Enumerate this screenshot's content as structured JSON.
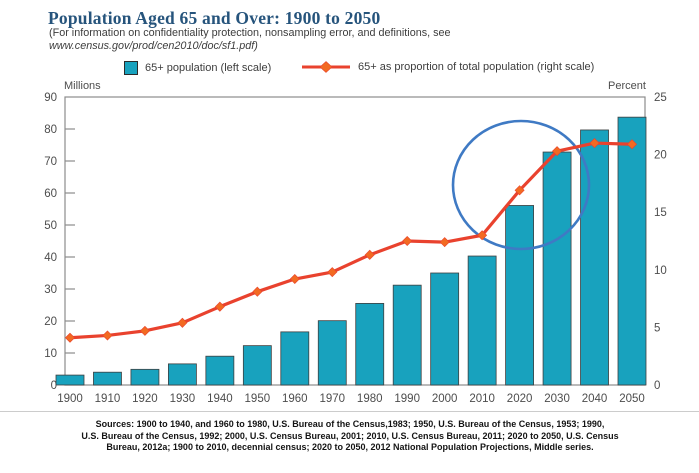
{
  "header": {
    "title": "Population Aged 65 and Over: 1900 to 2050",
    "subtitle_line1": "(For information on confidentiality protection, nonsampling error, and definitions, see",
    "subtitle_line2": "www.census.gov/prod/cen2010/doc/sf1.pdf)"
  },
  "legend": {
    "bar_label": "65+ population (left scale)",
    "line_label": "65+ as proportion of total population (right scale)"
  },
  "colors": {
    "title_text": "#26547C",
    "bar_fill": "#18A2BE",
    "bar_border": "#3f3f3f",
    "line": "#E9422E",
    "marker": "#F26A22",
    "annotation_circle": "#3F7AC4",
    "axis": "#8c8c8c",
    "tick_text": "#4d4d4d"
  },
  "chart_data": {
    "type": "bar",
    "title": "Population Aged 65 and Over: 1900 to 2050",
    "categories": [
      "1900",
      "1910",
      "1920",
      "1930",
      "1940",
      "1950",
      "1960",
      "1970",
      "1980",
      "1990",
      "2000",
      "2010",
      "2020",
      "2030",
      "2040",
      "2050"
    ],
    "series": [
      {
        "name": "65+ population (left scale)",
        "type": "bar",
        "axis": "left",
        "values": [
          3.1,
          4.0,
          4.9,
          6.6,
          9.0,
          12.3,
          16.6,
          20.1,
          25.5,
          31.2,
          35.0,
          40.3,
          56.1,
          72.8,
          79.7,
          83.7
        ]
      },
      {
        "name": "65+ as proportion of total population (right scale)",
        "type": "line",
        "axis": "right",
        "values": [
          4.1,
          4.3,
          4.7,
          5.4,
          6.8,
          8.1,
          9.2,
          9.8,
          11.3,
          12.5,
          12.4,
          13.0,
          16.9,
          20.3,
          21.0,
          20.9
        ]
      }
    ],
    "left_axis": {
      "label": "Millions",
      "min": 0,
      "max": 90,
      "tick_step": 10
    },
    "right_axis": {
      "label": "Percent",
      "min": 0,
      "max": 25,
      "tick_step": 5
    },
    "legend_position": "top",
    "grid": false,
    "annotation": {
      "type": "ellipse",
      "highlights": "rapid rise in proportion between 2010 and 2030"
    }
  },
  "footer": {
    "source_line1": "Sources: 1900 to 1940, and 1960 to 1980, U.S. Bureau of the Census,1983; 1950, U.S. Bureau of the Census, 1953; 1990,",
    "source_line2": "U.S. Bureau of the Census, 1992; 2000, U.S. Census Bureau, 2001; 2010, U.S. Census Bureau, 2011; 2020 to 2050, U.S. Census",
    "source_line3": "Bureau, 2012a; 1900 to 2010, decennial census; 2020 to 2050, 2012 National Population Projections, Middle series."
  }
}
